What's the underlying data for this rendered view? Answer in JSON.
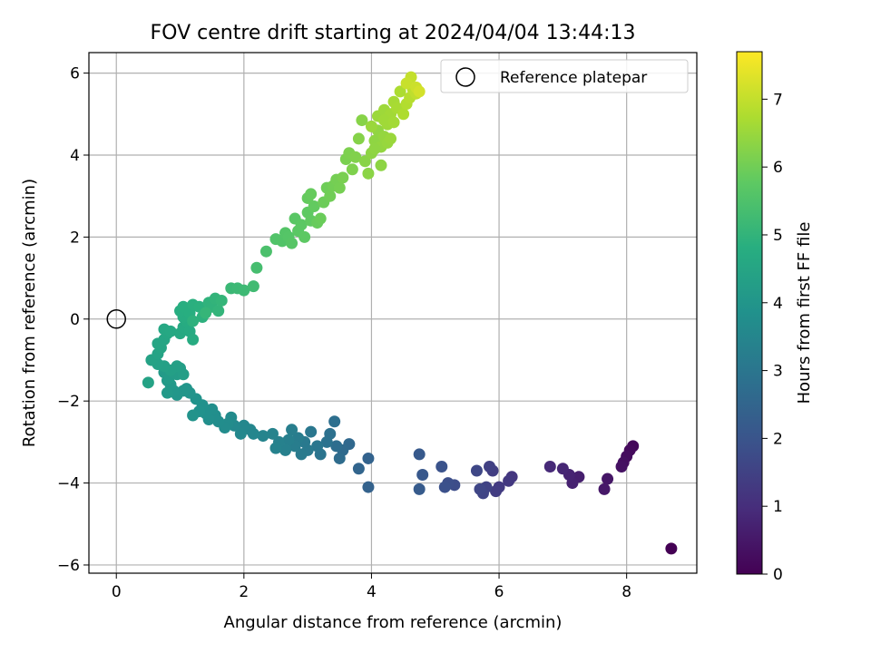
{
  "chart_data": {
    "type": "scatter",
    "title": "FOV centre drift starting at 2024/04/04 13:44:13",
    "xlabel": "Angular distance from reference (arcmin)",
    "ylabel": "Rotation from reference (arcmin)",
    "xlim": [
      -0.43,
      9.1
    ],
    "ylim": [
      -6.2,
      6.5
    ],
    "xticks": [
      "0",
      "2",
      "4",
      "6",
      "8"
    ],
    "xtick_values": [
      0,
      2,
      4,
      6,
      8
    ],
    "yticks": [
      "6",
      "4",
      "2",
      "0",
      "−2",
      "−4",
      "−6"
    ],
    "ytick_values": [
      6,
      4,
      2,
      0,
      -2,
      -4,
      -6
    ],
    "grid": true,
    "legend": {
      "placement": "top-right",
      "label": "Reference platepar",
      "marker": "open-circle"
    },
    "reference_point": {
      "x": 0,
      "y": 0
    },
    "colorbar": {
      "label": "Hours from first FF file",
      "colormap": "viridis",
      "range": [
        0,
        7.7
      ],
      "ticks": [
        "0",
        "1",
        "2",
        "3",
        "4",
        "5",
        "6",
        "7"
      ],
      "tick_values": [
        0,
        1,
        2,
        3,
        4,
        5,
        6,
        7
      ]
    },
    "points": [
      [
        8.7,
        -5.6,
        0.0
      ],
      [
        8.1,
        -3.1,
        0.15
      ],
      [
        8.05,
        -3.2,
        0.2
      ],
      [
        8.0,
        -3.35,
        0.25
      ],
      [
        7.95,
        -3.5,
        0.3
      ],
      [
        7.92,
        -3.6,
        0.35
      ],
      [
        7.7,
        -3.9,
        0.45
      ],
      [
        7.65,
        -4.15,
        0.5
      ],
      [
        7.25,
        -3.85,
        0.65
      ],
      [
        7.15,
        -4.0,
        0.7
      ],
      [
        7.1,
        -3.8,
        0.75
      ],
      [
        7.0,
        -3.65,
        0.8
      ],
      [
        6.8,
        -3.6,
        0.9
      ],
      [
        6.2,
        -3.85,
        1.2
      ],
      [
        6.15,
        -3.95,
        1.25
      ],
      [
        6.0,
        -4.1,
        1.3
      ],
      [
        5.95,
        -4.2,
        1.35
      ],
      [
        5.9,
        -3.7,
        1.4
      ],
      [
        5.85,
        -3.6,
        1.45
      ],
      [
        5.8,
        -4.1,
        1.5
      ],
      [
        5.75,
        -4.25,
        1.55
      ],
      [
        5.7,
        -4.15,
        1.6
      ],
      [
        5.65,
        -3.7,
        1.65
      ],
      [
        5.3,
        -4.05,
        1.8
      ],
      [
        5.2,
        -4.0,
        1.85
      ],
      [
        5.15,
        -4.1,
        1.9
      ],
      [
        5.1,
        -3.6,
        1.95
      ],
      [
        4.8,
        -3.8,
        2.1
      ],
      [
        4.75,
        -3.3,
        2.15
      ],
      [
        4.75,
        -4.15,
        2.2
      ],
      [
        3.95,
        -4.1,
        2.4
      ],
      [
        3.95,
        -3.4,
        2.45
      ],
      [
        3.8,
        -3.65,
        2.5
      ],
      [
        3.65,
        -3.05,
        2.6
      ],
      [
        3.55,
        -3.2,
        2.65
      ],
      [
        3.5,
        -3.4,
        2.7
      ],
      [
        3.45,
        -3.1,
        2.75
      ],
      [
        3.42,
        -2.5,
        2.8
      ],
      [
        3.35,
        -2.8,
        2.85
      ],
      [
        3.3,
        -3.0,
        2.9
      ],
      [
        3.2,
        -3.3,
        2.95
      ],
      [
        3.15,
        -3.1,
        3.0
      ],
      [
        3.05,
        -2.75,
        3.05
      ],
      [
        3.0,
        -3.2,
        3.1
      ],
      [
        2.95,
        -3.0,
        3.12
      ],
      [
        2.9,
        -3.3,
        3.15
      ],
      [
        2.85,
        -2.9,
        3.2
      ],
      [
        2.8,
        -3.1,
        3.22
      ],
      [
        2.75,
        -2.7,
        3.25
      ],
      [
        2.7,
        -2.95,
        3.3
      ],
      [
        2.65,
        -3.2,
        3.32
      ],
      [
        2.55,
        -3.0,
        3.35
      ],
      [
        2.5,
        -3.15,
        3.38
      ],
      [
        2.45,
        -2.8,
        3.4
      ],
      [
        2.3,
        -2.85,
        3.45
      ],
      [
        2.15,
        -2.8,
        3.5
      ],
      [
        2.1,
        -2.7,
        3.52
      ],
      [
        2.0,
        -2.6,
        3.55
      ],
      [
        1.95,
        -2.8,
        3.58
      ],
      [
        1.85,
        -2.6,
        3.6
      ],
      [
        1.8,
        -2.4,
        3.65
      ],
      [
        1.75,
        -2.55,
        3.68
      ],
      [
        1.7,
        -2.65,
        3.7
      ],
      [
        1.6,
        -2.5,
        3.72
      ],
      [
        1.55,
        -2.35,
        3.75
      ],
      [
        1.5,
        -2.2,
        3.78
      ],
      [
        1.45,
        -2.45,
        3.8
      ],
      [
        1.4,
        -2.3,
        3.82
      ],
      [
        1.35,
        -2.1,
        3.85
      ],
      [
        1.3,
        -2.25,
        3.88
      ],
      [
        1.25,
        -1.95,
        3.9
      ],
      [
        1.2,
        -2.35,
        3.92
      ],
      [
        1.15,
        -1.8,
        3.95
      ],
      [
        1.1,
        -1.7,
        3.97
      ],
      [
        1.05,
        -1.75,
        4.0
      ],
      [
        0.95,
        -1.85,
        4.02
      ],
      [
        0.9,
        -1.75,
        4.05
      ],
      [
        0.85,
        -1.6,
        4.08
      ],
      [
        0.8,
        -1.8,
        4.1
      ],
      [
        0.8,
        -1.5,
        4.12
      ],
      [
        0.75,
        -1.3,
        4.15
      ],
      [
        0.82,
        -1.45,
        4.17
      ],
      [
        0.88,
        -1.3,
        4.2
      ],
      [
        0.95,
        -1.35,
        4.22
      ],
      [
        1.0,
        -1.2,
        4.25
      ],
      [
        1.05,
        -1.35,
        4.28
      ],
      [
        0.95,
        -1.15,
        4.3
      ],
      [
        0.85,
        -1.25,
        4.32
      ],
      [
        0.75,
        -1.15,
        4.35
      ],
      [
        0.65,
        -1.1,
        4.37
      ],
      [
        0.55,
        -1.0,
        4.4
      ],
      [
        0.5,
        -1.55,
        4.42
      ],
      [
        0.65,
        -0.85,
        4.45
      ],
      [
        0.7,
        -0.7,
        4.47
      ],
      [
        0.65,
        -0.6,
        4.5
      ],
      [
        0.75,
        -0.5,
        4.52
      ],
      [
        0.8,
        -0.35,
        4.55
      ],
      [
        0.75,
        -0.25,
        4.57
      ],
      [
        0.85,
        -0.3,
        4.6
      ],
      [
        1.0,
        -0.35,
        4.62
      ],
      [
        1.05,
        -0.2,
        4.65
      ],
      [
        1.15,
        -0.3,
        4.67
      ],
      [
        1.2,
        -0.5,
        4.7
      ],
      [
        1.1,
        -0.05,
        4.72
      ],
      [
        1.05,
        0.05,
        4.75
      ],
      [
        1.0,
        0.2,
        4.77
      ],
      [
        1.05,
        0.3,
        4.8
      ],
      [
        1.15,
        0.15,
        4.82
      ],
      [
        1.2,
        0.35,
        4.85
      ],
      [
        1.3,
        0.3,
        4.87
      ],
      [
        1.35,
        0.05,
        4.9
      ],
      [
        1.2,
        -0.05,
        4.92
      ],
      [
        1.45,
        0.4,
        4.95
      ],
      [
        1.5,
        0.3,
        4.97
      ],
      [
        1.55,
        0.5,
        5.0
      ],
      [
        1.6,
        0.2,
        5.02
      ],
      [
        1.65,
        0.45,
        5.05
      ],
      [
        1.4,
        0.15,
        5.07
      ],
      [
        1.8,
        0.75,
        5.15
      ],
      [
        1.9,
        0.75,
        5.18
      ],
      [
        2.0,
        0.7,
        5.2
      ],
      [
        2.15,
        0.8,
        5.25
      ],
      [
        2.2,
        1.25,
        5.35
      ],
      [
        2.35,
        1.65,
        5.45
      ],
      [
        2.5,
        1.95,
        5.55
      ],
      [
        2.6,
        1.9,
        5.57
      ],
      [
        2.65,
        2.1,
        5.6
      ],
      [
        2.7,
        2.0,
        5.62
      ],
      [
        2.75,
        1.85,
        5.65
      ],
      [
        2.8,
        2.45,
        5.68
      ],
      [
        2.85,
        2.15,
        5.7
      ],
      [
        2.9,
        2.3,
        5.72
      ],
      [
        2.95,
        2.0,
        5.75
      ],
      [
        3.0,
        2.6,
        5.77
      ],
      [
        3.05,
        2.4,
        5.8
      ],
      [
        3.1,
        2.75,
        5.82
      ],
      [
        3.0,
        2.95,
        5.85
      ],
      [
        3.05,
        3.05,
        5.87
      ],
      [
        3.15,
        2.35,
        5.9
      ],
      [
        3.2,
        2.45,
        5.92
      ],
      [
        3.25,
        2.85,
        5.95
      ],
      [
        3.3,
        3.2,
        5.97
      ],
      [
        3.35,
        3.0,
        6.0
      ],
      [
        3.4,
        3.25,
        6.02
      ],
      [
        3.45,
        3.4,
        6.05
      ],
      [
        3.5,
        3.2,
        6.07
      ],
      [
        3.55,
        3.45,
        6.1
      ],
      [
        3.6,
        3.9,
        6.12
      ],
      [
        3.65,
        4.05,
        6.15
      ],
      [
        3.7,
        3.65,
        6.17
      ],
      [
        3.75,
        3.95,
        6.2
      ],
      [
        3.8,
        4.4,
        6.25
      ],
      [
        3.85,
        4.85,
        6.28
      ],
      [
        3.9,
        3.85,
        6.3
      ],
      [
        3.95,
        3.55,
        6.32
      ],
      [
        4.0,
        4.05,
        6.35
      ],
      [
        4.05,
        4.35,
        6.37
      ],
      [
        4.1,
        4.6,
        6.4
      ],
      [
        4.15,
        4.2,
        6.42
      ],
      [
        4.2,
        4.45,
        6.45
      ],
      [
        4.25,
        4.3,
        6.47
      ],
      [
        4.0,
        4.7,
        6.5
      ],
      [
        4.1,
        4.95,
        6.52
      ],
      [
        4.2,
        5.1,
        6.55
      ],
      [
        4.25,
        4.75,
        6.57
      ],
      [
        4.3,
        5.0,
        6.6
      ],
      [
        4.35,
        5.3,
        6.65
      ],
      [
        4.4,
        5.15,
        6.68
      ],
      [
        4.45,
        5.55,
        6.72
      ],
      [
        4.5,
        5.0,
        6.75
      ],
      [
        4.55,
        5.25,
        6.8
      ],
      [
        4.6,
        5.4,
        6.85
      ],
      [
        4.65,
        5.6,
        6.9
      ],
      [
        4.7,
        5.5,
        6.95
      ],
      [
        4.62,
        5.9,
        7.0
      ],
      [
        4.55,
        5.75,
        7.05
      ],
      [
        4.7,
        5.65,
        7.1
      ],
      [
        4.75,
        5.55,
        7.2
      ],
      [
        4.15,
        3.75,
        6.35
      ],
      [
        4.05,
        4.15,
        6.38
      ],
      [
        4.3,
        4.4,
        6.5
      ],
      [
        4.2,
        4.85,
        6.58
      ],
      [
        4.35,
        4.8,
        6.62
      ]
    ]
  }
}
